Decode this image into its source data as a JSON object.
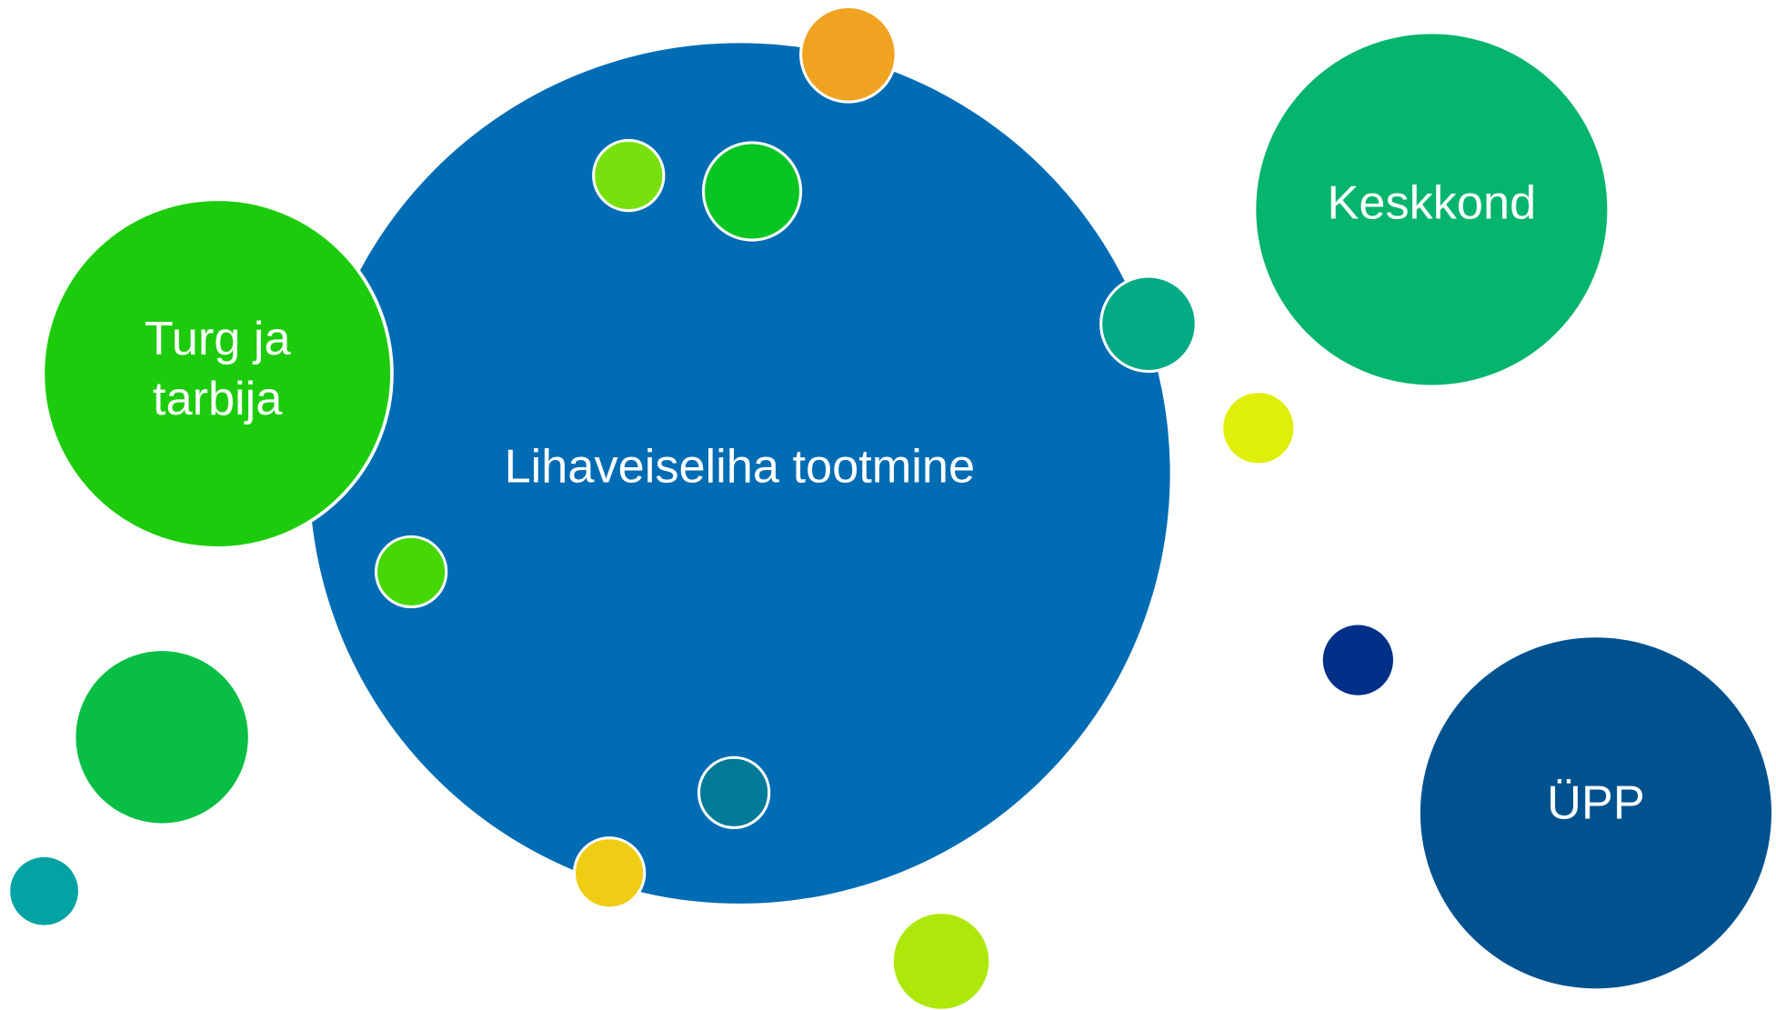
{
  "nodes": [
    {
      "label": "Lihaveiseliha tootmine"
    },
    {
      "lines": [
        "Turg ja",
        "tarbija"
      ]
    },
    {
      "label": "Keskkond"
    },
    {
      "label": "ÜPP"
    }
  ]
}
